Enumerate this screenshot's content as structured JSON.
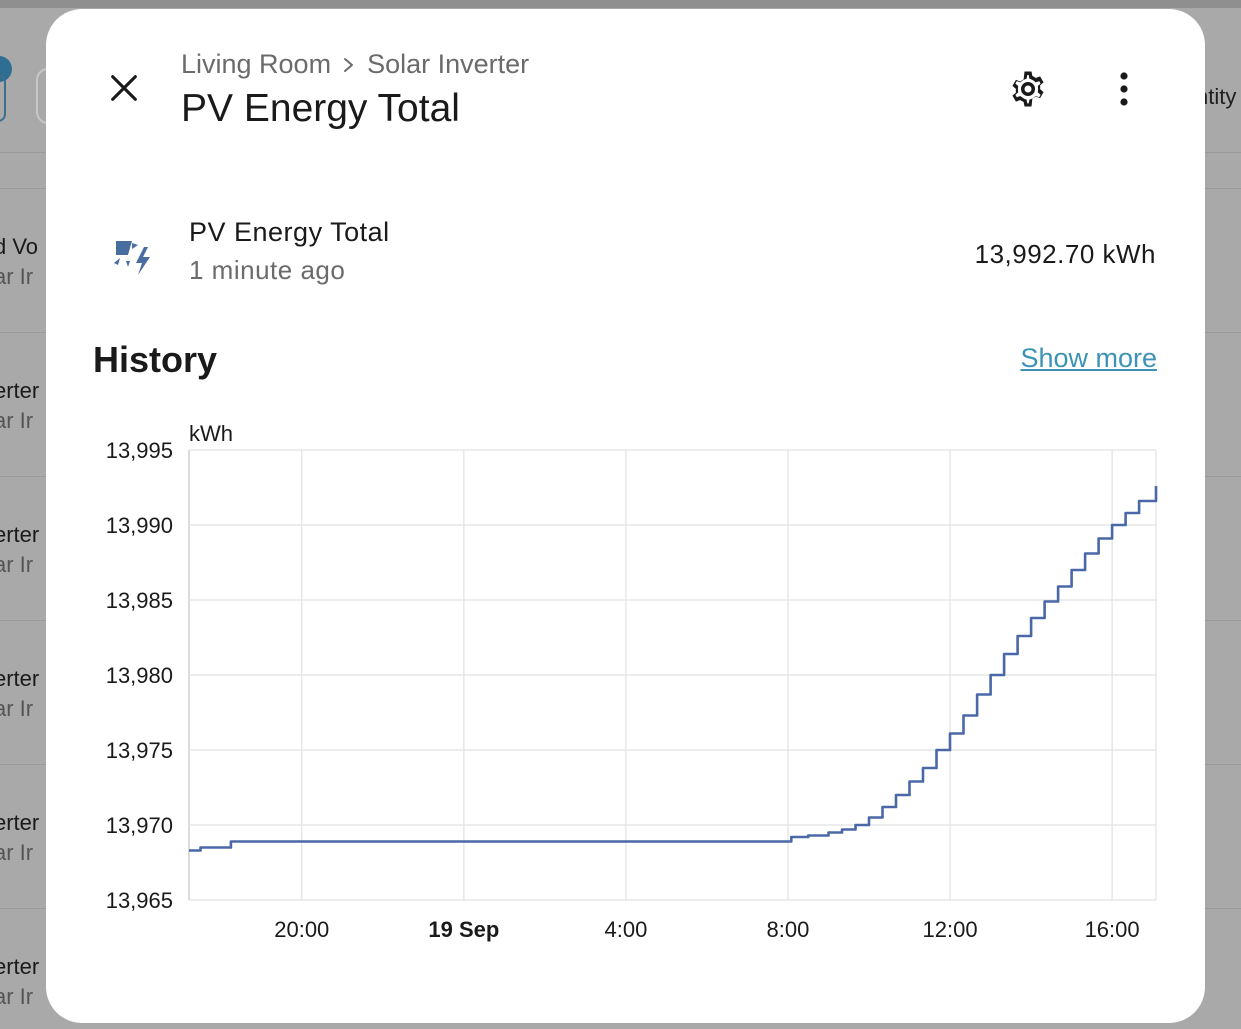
{
  "background": {
    "right_partial_text": "ntity",
    "rows": [
      {
        "line1": "d Vo",
        "line2": "ar Ir"
      },
      {
        "line1": "erter",
        "line2": "ar Ir"
      },
      {
        "line1": "erter",
        "line2": "ar Ir"
      },
      {
        "line1": "erter",
        "line2": "ar Ir"
      },
      {
        "line1": "erter",
        "line2": "ar Ir"
      },
      {
        "line1": "erter",
        "line2": "ar Ir"
      }
    ]
  },
  "dialog": {
    "breadcrumb": {
      "area": "Living Room",
      "device": "Solar Inverter"
    },
    "title": "PV Energy Total",
    "icons": {
      "close": "close-icon",
      "settings": "gear-icon",
      "more": "more-vertical-icon",
      "entity": "solar-power-icon",
      "breadcrumb_sep": "chevron-right-icon"
    },
    "entity": {
      "name": "PV Energy Total",
      "last_changed": "1 minute ago",
      "state": "13,992.70 kWh"
    },
    "history": {
      "title": "History",
      "show_more": "Show more"
    }
  },
  "colors": {
    "line": "#4a68a8",
    "grid": "#e2e2e2",
    "link": "#3e93b5"
  },
  "chart_data": {
    "type": "line",
    "ylabel": "kWh",
    "ylim": [
      13965,
      13995
    ],
    "y_ticks": [
      {
        "value": 13995,
        "label": "13,995"
      },
      {
        "value": 13990,
        "label": "13,990"
      },
      {
        "value": 13985,
        "label": "13,985"
      },
      {
        "value": 13980,
        "label": "13,980"
      },
      {
        "value": 13975,
        "label": "13,975"
      },
      {
        "value": 13970,
        "label": "13,970"
      },
      {
        "value": 13965,
        "label": "13,965"
      }
    ],
    "xlim": [
      "2023-09-18 17:13",
      "2023-09-19 17:05"
    ],
    "x_ticks": [
      {
        "time": "2023-09-18 20:00",
        "label": "20:00",
        "bold": false
      },
      {
        "time": "2023-09-19 00:00",
        "label": "19 Sep",
        "bold": true
      },
      {
        "time": "2023-09-19 04:00",
        "label": "4:00",
        "bold": false
      },
      {
        "time": "2023-09-19 08:00",
        "label": "8:00",
        "bold": false
      },
      {
        "time": "2023-09-19 12:00",
        "label": "12:00",
        "bold": false
      },
      {
        "time": "2023-09-19 16:00",
        "label": "16:00",
        "bold": false
      }
    ],
    "series": [
      {
        "step": true,
        "points": [
          [
            "2023-09-18 17:13",
            13968.3
          ],
          [
            "2023-09-18 17:30",
            13968.5
          ],
          [
            "2023-09-18 18:15",
            13968.9
          ],
          [
            "2023-09-19 07:45",
            13968.9
          ],
          [
            "2023-09-19 08:05",
            13969.2
          ],
          [
            "2023-09-19 08:30",
            13969.3
          ],
          [
            "2023-09-19 09:00",
            13969.5
          ],
          [
            "2023-09-19 09:20",
            13969.7
          ],
          [
            "2023-09-19 09:40",
            13970.0
          ],
          [
            "2023-09-19 10:00",
            13970.5
          ],
          [
            "2023-09-19 10:20",
            13971.2
          ],
          [
            "2023-09-19 10:40",
            13972.0
          ],
          [
            "2023-09-19 11:00",
            13972.9
          ],
          [
            "2023-09-19 11:20",
            13973.8
          ],
          [
            "2023-09-19 11:40",
            13975.0
          ],
          [
            "2023-09-19 12:00",
            13976.1
          ],
          [
            "2023-09-19 12:20",
            13977.3
          ],
          [
            "2023-09-19 12:40",
            13978.7
          ],
          [
            "2023-09-19 13:00",
            13980.0
          ],
          [
            "2023-09-19 13:20",
            13981.4
          ],
          [
            "2023-09-19 13:40",
            13982.6
          ],
          [
            "2023-09-19 14:00",
            13983.8
          ],
          [
            "2023-09-19 14:20",
            13984.9
          ],
          [
            "2023-09-19 14:40",
            13985.9
          ],
          [
            "2023-09-19 15:00",
            13987.0
          ],
          [
            "2023-09-19 15:20",
            13988.1
          ],
          [
            "2023-09-19 15:40",
            13989.1
          ],
          [
            "2023-09-19 16:00",
            13990.0
          ],
          [
            "2023-09-19 16:20",
            13990.8
          ],
          [
            "2023-09-19 16:40",
            13991.6
          ],
          [
            "2023-09-19 17:05",
            13992.6
          ]
        ]
      }
    ]
  }
}
